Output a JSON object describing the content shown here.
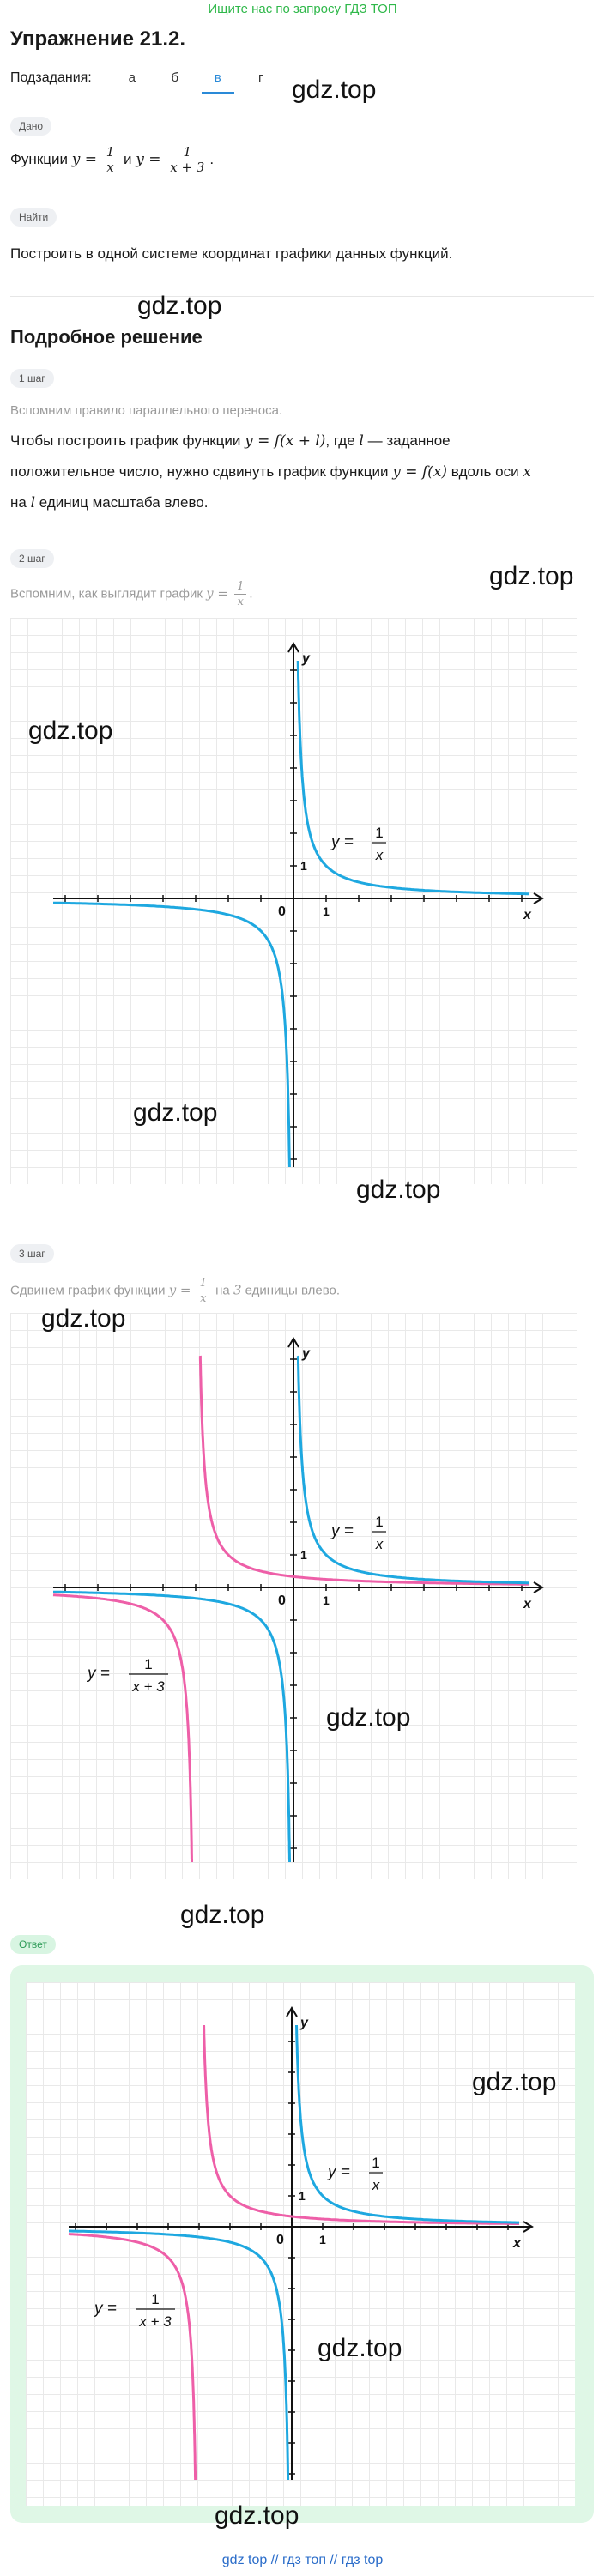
{
  "top_banner": "Ищите нас по запросу ГДЗ ТОП",
  "title": "Упражнение 21.2.",
  "subtasks": {
    "label": "Подзадания:",
    "tabs": [
      "а",
      "б",
      "в",
      "г"
    ],
    "active": "в"
  },
  "given": {
    "pill": "Дано",
    "text_before": "Функции",
    "eq1": "y =",
    "frac1_num": "1",
    "frac1_den": "x",
    "and": "и",
    "eq2": "y =",
    "frac2_num": "1",
    "frac2_den": "x + 3",
    "text_after": "."
  },
  "find": {
    "pill": "Найти",
    "text": "Построить в одной системе координат графики данных функций."
  },
  "solution_title": "Подробное решение",
  "step1": {
    "pill": "1 шаг",
    "hint": "Вспомним правило параллельного переноса.",
    "line1_a": "Чтобы построить график функции",
    "line1_math": "y = f(x + l)",
    "line1_b": ", где",
    "line1_l": "l",
    "line1_c": "— заданное",
    "line2_a": "положительное число, нужно сдвинуть график функции",
    "line2_math": "y = f(x)",
    "line2_b": "вдоль оси",
    "line2_x": "x",
    "line3_l": "l",
    "line3_b": "единиц масштаба влево.",
    "line3_a": "на"
  },
  "step2": {
    "pill": "2 шаг",
    "hint_a": "Вспомним, как выглядит график",
    "eq": "y =",
    "num": "1",
    "den": "x",
    "hint_b": "."
  },
  "step3": {
    "pill": "3 шаг",
    "hint_a": "Сдвинем график функции",
    "eq": "y =",
    "num": "1",
    "den": "x",
    "hint_b": "на",
    "n": "3",
    "hint_c": "единицы влево."
  },
  "answer_pill": "Ответ",
  "graph_labels": {
    "y_axis": "y",
    "x_axis": "x",
    "origin": "0",
    "one_x": "1",
    "one_y": "1",
    "f1_eq": "y =",
    "f1_num": "1",
    "f1_den": "x",
    "f2_eq": "y =",
    "f2_num": "1",
    "f2_den": "x + 3"
  },
  "colors": {
    "blue_curve": "#1ea8e0",
    "pink_curve": "#ee5fa8",
    "accent": "#2a8ad8",
    "green": "#2fb84a"
  },
  "watermarks": [
    "gdz.top",
    "gdz.top",
    "gdz.top",
    "gdz.top",
    "gdz.top",
    "gdz.top",
    "gdz.top",
    "gdz.top",
    "gdz.top",
    "gdz.top",
    "gdz.top",
    "gdz.top"
  ],
  "footer": "gdz top // гдз топ // гдз top"
}
